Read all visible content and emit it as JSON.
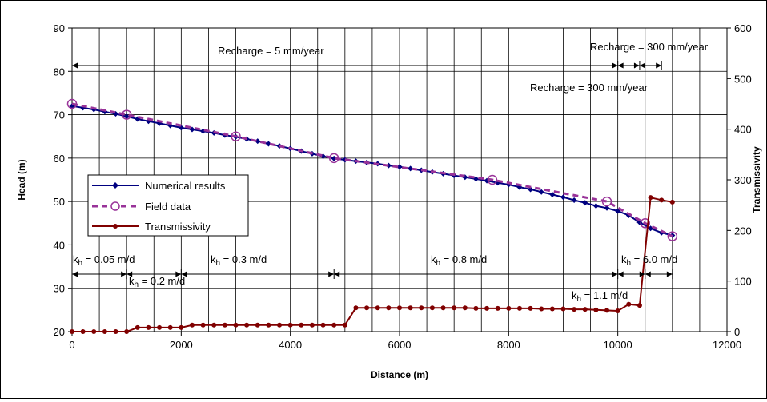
{
  "chart_data": {
    "type": "line",
    "xlabel": "Distance (m)",
    "ylabel": "Head (m)",
    "y2label": "Transmissivity",
    "xlim": [
      0,
      12000
    ],
    "ylim": [
      20,
      90
    ],
    "y2lim": [
      0,
      600
    ],
    "xticks": [
      "0",
      "2000",
      "4000",
      "6000",
      "8000",
      "10000",
      "12000"
    ],
    "yticks": [
      "20",
      "30",
      "40",
      "50",
      "60",
      "70",
      "80",
      "90"
    ],
    "y2ticks": [
      "0",
      "100",
      "200",
      "300",
      "400",
      "500",
      "600"
    ],
    "grid": true,
    "legend_placement": "middle-left",
    "legend": [
      "Numerical results",
      "Field data",
      "Transmissivity"
    ],
    "series": [
      {
        "name": "Numerical results",
        "axis": "left",
        "color": "#000080",
        "style": "solid-diamond",
        "x": [
          0,
          200,
          400,
          600,
          800,
          1000,
          1200,
          1400,
          1600,
          1800,
          2000,
          2200,
          2400,
          2600,
          2800,
          3000,
          3200,
          3400,
          3600,
          3800,
          4000,
          4200,
          4400,
          4600,
          4800,
          5000,
          5200,
          5400,
          5600,
          5800,
          6000,
          6200,
          6400,
          6600,
          6800,
          7000,
          7200,
          7400,
          7600,
          7800,
          8000,
          8200,
          8400,
          8600,
          8800,
          9000,
          9200,
          9400,
          9600,
          9800,
          10000,
          10200,
          10400,
          10600,
          10800,
          11000
        ],
        "y": [
          72.0,
          71.6,
          71.2,
          70.7,
          70.2,
          69.6,
          69.0,
          68.5,
          68.0,
          67.5,
          67.0,
          66.6,
          66.2,
          65.8,
          65.3,
          64.9,
          64.4,
          63.9,
          63.3,
          62.8,
          62.2,
          61.6,
          61.0,
          60.4,
          59.9,
          59.6,
          59.3,
          59.0,
          58.7,
          58.3,
          58.0,
          57.6,
          57.2,
          56.8,
          56.4,
          56.0,
          55.6,
          55.2,
          54.8,
          54.3,
          53.9,
          53.3,
          52.8,
          52.2,
          51.6,
          51.0,
          50.3,
          49.7,
          49.0,
          48.5,
          47.8,
          46.8,
          45.2,
          43.8,
          42.8,
          42.2
        ]
      },
      {
        "name": "Field data",
        "axis": "left",
        "color": "#993399",
        "style": "dashed-open-circle",
        "x": [
          0,
          1000,
          3000,
          4800,
          7700,
          9800,
          10500,
          11000
        ],
        "y": [
          72.5,
          70.0,
          65.0,
          60.0,
          55.0,
          50.0,
          45.0,
          42.0
        ]
      },
      {
        "name": "Transmissivity",
        "axis": "right",
        "color": "#800000",
        "style": "solid-dot",
        "x": [
          0,
          200,
          400,
          600,
          800,
          1000,
          1200,
          1400,
          1600,
          1800,
          2000,
          2200,
          2400,
          2600,
          2800,
          3000,
          3200,
          3400,
          3600,
          3800,
          4000,
          4200,
          4400,
          4600,
          4800,
          5000,
          5200,
          5400,
          5600,
          5800,
          6000,
          6200,
          6400,
          6600,
          6800,
          7000,
          7200,
          7400,
          7600,
          7800,
          8000,
          8200,
          8400,
          8600,
          8800,
          9000,
          9200,
          9400,
          9600,
          9800,
          10000,
          10200,
          10400,
          10600,
          10800,
          11000
        ],
        "y": [
          0,
          0,
          0,
          0,
          0,
          0,
          8,
          8,
          8,
          8,
          8,
          13,
          13,
          13,
          13,
          13,
          13,
          13,
          13,
          13,
          13,
          13,
          13,
          13,
          13,
          13,
          47,
          47,
          47,
          47,
          47,
          47,
          47,
          47,
          47,
          47,
          47,
          46,
          46,
          46,
          46,
          46,
          46,
          45,
          45,
          45,
          44,
          44,
          43,
          42,
          41,
          54,
          52,
          265,
          260,
          256
        ]
      }
    ],
    "annotations": {
      "recharge_main": "Recharge = 5 mm/year",
      "recharge_upper": "Recharge = 300 mm/year",
      "recharge_lower": "Recharge = 300 mm/year",
      "k_sym": "k",
      "k_sub": "h",
      "k1": " = 0.05 m/d",
      "k2": " = 0.2 m/d",
      "k3": " = 0.3 m/d",
      "k4": " = 0.8 m/d",
      "k5": " = 1.1 m/d",
      "k6": " = 6.0 m/d"
    }
  }
}
